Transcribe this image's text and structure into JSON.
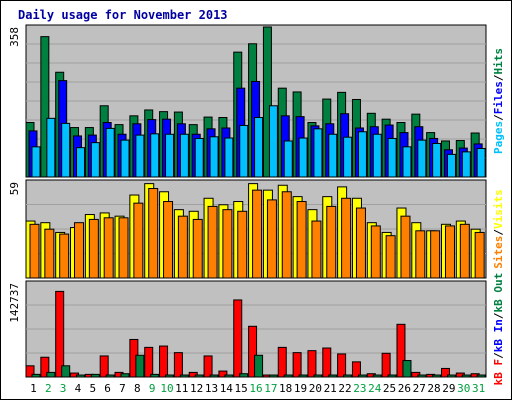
{
  "title": "Daily usage for November 2013",
  "colors": {
    "pages": "#00c0ff",
    "files": "#0000ff",
    "hits": "#008040",
    "visits": "#ffff00",
    "sites": "#ff8000",
    "kbin": "#0000ff",
    "kbout": "#008040",
    "kbf": "#ff0000",
    "panel_bg": "#c0c0c0",
    "weekday_label": "#000000",
    "weekend_label": "#00a040"
  },
  "chart_data": [
    {
      "type": "bar",
      "panel": "top",
      "ymax_label": "358",
      "ylim": [
        0,
        358
      ],
      "series_labels": [
        "Pages",
        "Files",
        "Hits"
      ],
      "series": [
        {
          "name": "Hits",
          "values": [
            130,
            335,
            250,
            118,
            118,
            170,
            125,
            146,
            160,
            156,
            155,
            125,
            143,
            142,
            298,
            318,
            358,
            212,
            203,
            130,
            186,
            202,
            185,
            152,
            138,
            130,
            150,
            106,
            86,
            87,
            105
          ]
        },
        {
          "name": "Files",
          "values": [
            110,
            0,
            230,
            98,
            100,
            130,
            102,
            127,
            137,
            138,
            127,
            102,
            115,
            117,
            212,
            228,
            0,
            146,
            144,
            122,
            127,
            151,
            117,
            120,
            124,
            106,
            120,
            92,
            65,
            69,
            79
          ]
        },
        {
          "name": "Pages",
          "values": [
            72,
            140,
            128,
            70,
            82,
            116,
            88,
            100,
            103,
            102,
            102,
            92,
            96,
            93,
            123,
            142,
            170,
            86,
            93,
            115,
            102,
            95,
            108,
            102,
            92,
            72,
            88,
            80,
            54,
            60,
            68
          ]
        }
      ]
    },
    {
      "type": "bar",
      "panel": "middle",
      "ymax_label": "59",
      "ylim": [
        0,
        59
      ],
      "series_labels": [
        "Sites",
        "Visits"
      ],
      "series": [
        {
          "name": "Visits",
          "values": [
            35,
            34,
            28,
            31,
            39,
            40,
            38,
            51,
            58,
            53,
            42,
            41,
            49,
            45,
            47,
            58,
            54,
            57,
            50,
            42,
            50,
            56,
            49,
            34,
            28,
            43,
            34,
            29,
            33,
            35,
            30
          ]
        },
        {
          "name": "Sites",
          "values": [
            33,
            30,
            27,
            34,
            36,
            37,
            37,
            46,
            55,
            47,
            38,
            36,
            44,
            42,
            41,
            54,
            48,
            53,
            47,
            35,
            44,
            49,
            43,
            32,
            26,
            38,
            29,
            29,
            32,
            33,
            28
          ]
        }
      ]
    },
    {
      "type": "bar",
      "panel": "bottom",
      "ymax_label": "142737",
      "ylim": [
        0,
        142737
      ],
      "series_labels": [
        "kB F",
        "kB In",
        "kB Out"
      ],
      "series": [
        {
          "name": "kB F",
          "values": [
            17000,
            30000,
            130000,
            6000,
            4000,
            32000,
            7000,
            57000,
            45000,
            47000,
            37000,
            7000,
            32000,
            9000,
            117000,
            77000,
            3000,
            45000,
            37000,
            40000,
            44000,
            35000,
            23000,
            5000,
            36000,
            80000,
            7000,
            4000,
            13000,
            6000,
            5000
          ]
        },
        {
          "name": "kB In",
          "values": [
            0,
            0,
            0,
            0,
            0,
            0,
            0,
            0,
            0,
            0,
            0,
            0,
            0,
            0,
            0,
            0,
            0,
            0,
            0,
            0,
            0,
            0,
            0,
            0,
            0,
            0,
            0,
            0,
            0,
            0,
            0
          ]
        },
        {
          "name": "kB Out",
          "values": [
            4000,
            7000,
            17000,
            3000,
            4000,
            3000,
            5000,
            33000,
            4000,
            3000,
            3000,
            3000,
            3000,
            3000,
            5000,
            33000,
            3000,
            3000,
            3000,
            3000,
            3000,
            3000,
            3000,
            3000,
            3000,
            25000,
            3000,
            3000,
            3000,
            3000,
            3000
          ]
        }
      ]
    }
  ],
  "x_labels": [
    "1",
    "2",
    "3",
    "4",
    "5",
    "6",
    "7",
    "8",
    "9",
    "10",
    "11",
    "12",
    "13",
    "14",
    "15",
    "16",
    "17",
    "18",
    "19",
    "20",
    "21",
    "22",
    "23",
    "24",
    "25",
    "26",
    "27",
    "28",
    "29",
    "30",
    "31"
  ],
  "weekend_days": [
    "2",
    "3",
    "9",
    "10",
    "16",
    "17",
    "23",
    "24",
    "30",
    "31"
  ]
}
